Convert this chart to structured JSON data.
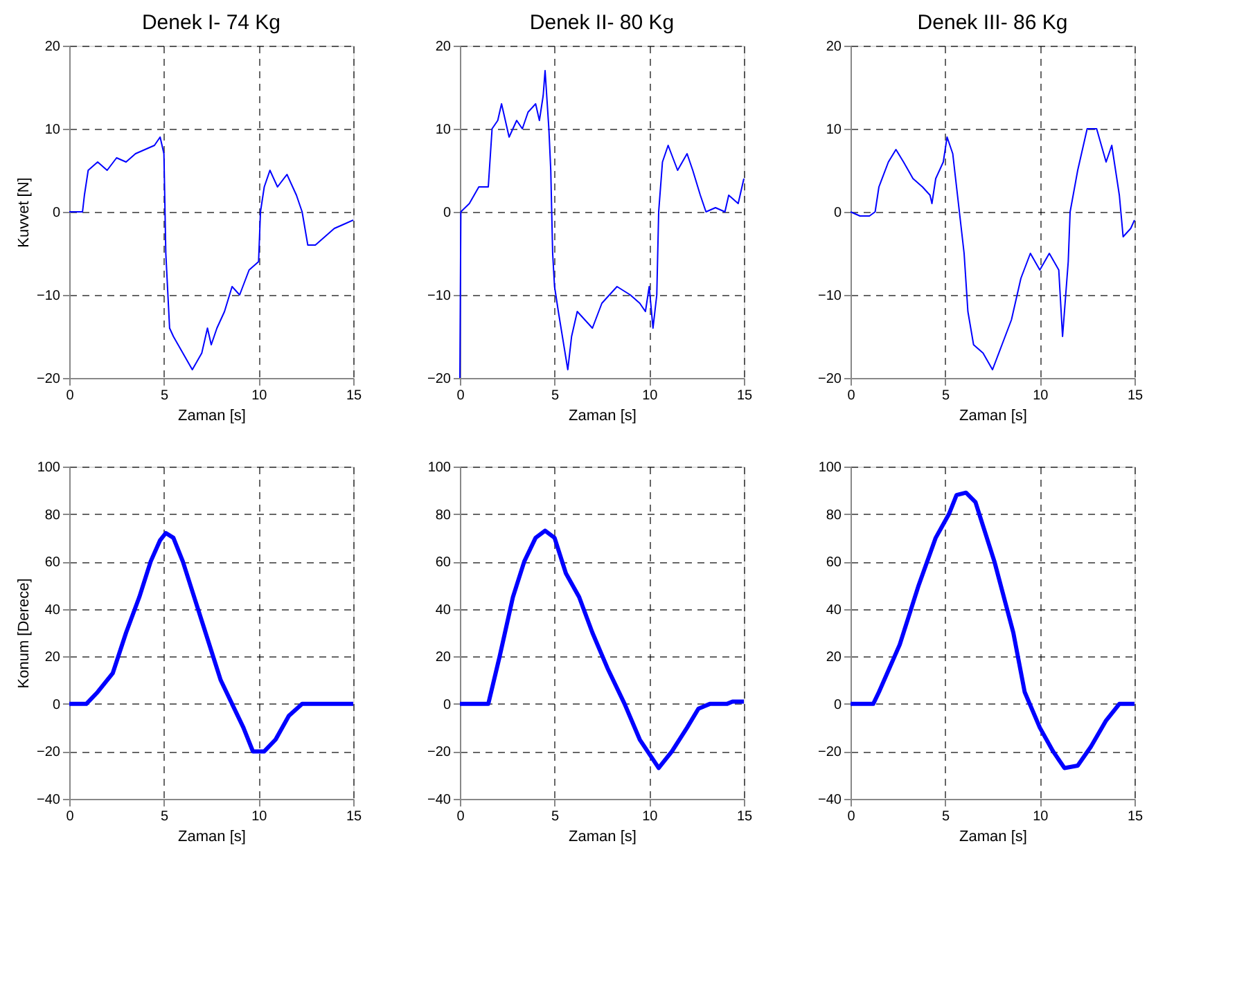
{
  "chart_data": [
    {
      "type": "line",
      "title": "Denek I- 74 Kg",
      "xlabel": "Zaman [s]",
      "ylabel": "Kuvvet [N]",
      "xlim": [
        0,
        15
      ],
      "ylim": [
        -20,
        20
      ],
      "xticks": [
        0,
        5,
        10,
        15
      ],
      "yticks": [
        -20,
        -10,
        0,
        10,
        20
      ],
      "grid": true,
      "line_style": "solid",
      "series": [
        {
          "color": "#0000ff",
          "x": [
            0,
            0.7,
            0.8,
            1.0,
            1.5,
            2.0,
            2.5,
            3.0,
            3.5,
            4.0,
            4.5,
            4.8,
            5.0,
            5.1,
            5.3,
            5.5,
            6.0,
            6.5,
            7.0,
            7.3,
            7.5,
            7.8,
            8.2,
            8.6,
            9.0,
            9.5,
            10.0,
            10.1,
            10.3,
            10.6,
            11.0,
            11.5,
            12.0,
            12.3,
            12.6,
            13.0,
            13.5,
            14.0,
            14.5,
            15.0
          ],
          "values": [
            0,
            0,
            2,
            5,
            6,
            5,
            6.5,
            6,
            7,
            7.5,
            8,
            9,
            7,
            -5,
            -14,
            -15,
            -17,
            -19,
            -17,
            -14,
            -16,
            -14,
            -12,
            -9,
            -10,
            -7,
            -6,
            0,
            3,
            5,
            3,
            4.5,
            2,
            0,
            -4,
            -4,
            -3,
            -2,
            -1.5,
            -1
          ]
        }
      ]
    },
    {
      "type": "line",
      "title": "Denek II- 80 Kg",
      "xlabel": "Zaman [s]",
      "xlim": [
        0,
        15
      ],
      "ylim": [
        -20,
        20
      ],
      "xticks": [
        0,
        5,
        10,
        15
      ],
      "yticks": [
        -20,
        -10,
        0,
        10,
        20
      ],
      "grid": true,
      "line_style": "solid",
      "series": [
        {
          "color": "#0000ff",
          "x": [
            0,
            0.05,
            0.5,
            1.0,
            1.5,
            1.7,
            2.0,
            2.2,
            2.6,
            3.0,
            3.3,
            3.6,
            4.0,
            4.2,
            4.4,
            4.5,
            4.7,
            4.8,
            4.9,
            5.0,
            5.2,
            5.7,
            5.9,
            6.2,
            6.6,
            7.0,
            7.5,
            8.3,
            9.0,
            9.5,
            9.8,
            10.0,
            10.2,
            10.4,
            10.5,
            10.7,
            11.0,
            11.5,
            12.0,
            12.3,
            12.7,
            13.0,
            13.5,
            14.0,
            14.2,
            14.7,
            15.0
          ],
          "values": [
            -20,
            0,
            1,
            3,
            3,
            10,
            11,
            13,
            9,
            11,
            10,
            12,
            13,
            11,
            14,
            17,
            10,
            5,
            -5,
            -9,
            -12,
            -19,
            -15,
            -12,
            -13,
            -14,
            -11,
            -9,
            -10,
            -11,
            -12,
            -9,
            -14,
            -10,
            0,
            6,
            8,
            5,
            7,
            5,
            2,
            0,
            0.5,
            0,
            2,
            1,
            4
          ]
        }
      ]
    },
    {
      "type": "line",
      "title": "Denek III- 86 Kg",
      "xlabel": "Zaman [s]",
      "xlim": [
        0,
        15
      ],
      "ylim": [
        -20,
        20
      ],
      "xticks": [
        0,
        5,
        10,
        15
      ],
      "yticks": [
        -20,
        -10,
        0,
        10,
        20
      ],
      "grid": true,
      "line_style": "solid",
      "series": [
        {
          "color": "#0000ff",
          "x": [
            0,
            0.5,
            1.0,
            1.3,
            1.5,
            2.0,
            2.4,
            2.8,
            3.3,
            3.8,
            4.2,
            4.3,
            4.5,
            4.9,
            5.1,
            5.4,
            5.6,
            5.8,
            6.0,
            6.2,
            6.5,
            7.0,
            7.5,
            8.0,
            8.5,
            9.0,
            9.5,
            10.0,
            10.5,
            11.0,
            11.2,
            11.5,
            11.6,
            12.0,
            12.5,
            13.0,
            13.5,
            13.8,
            14.2,
            14.4,
            14.8,
            15.0
          ],
          "values": [
            0,
            -0.5,
            -0.5,
            0,
            3,
            6,
            7.5,
            6,
            4,
            3,
            2,
            1,
            4,
            6,
            9,
            7,
            3,
            -1,
            -5,
            -12,
            -16,
            -17,
            -19,
            -16,
            -13,
            -8,
            -5,
            -7,
            -5,
            -7,
            -15,
            -6,
            0,
            5,
            10,
            10,
            6,
            8,
            2,
            -3,
            -2,
            -1
          ]
        }
      ]
    },
    {
      "type": "line",
      "xlabel": "Zaman [s]",
      "ylabel": "Konum [Derece]",
      "xlim": [
        0,
        15
      ],
      "ylim": [
        -40,
        100
      ],
      "xticks": [
        0,
        5,
        10,
        15
      ],
      "yticks": [
        -40,
        -20,
        0,
        20,
        40,
        60,
        80,
        100
      ],
      "grid": true,
      "line_style": "solid",
      "series": [
        {
          "color": "#0000ff",
          "x": [
            0,
            0.9,
            1.5,
            2.3,
            3.0,
            3.7,
            4.3,
            4.8,
            5.1,
            5.5,
            6.0,
            6.6,
            7.2,
            8.0,
            8.6,
            9.2,
            9.7,
            10.3,
            10.9,
            11.6,
            12.3,
            15.0
          ],
          "values": [
            0,
            0,
            5,
            13,
            30,
            45,
            60,
            69,
            72,
            70,
            60,
            45,
            30,
            10,
            0,
            -10,
            -20,
            -20,
            -15,
            -5,
            0,
            0
          ]
        }
      ]
    },
    {
      "type": "line",
      "xlabel": "Zaman [s]",
      "xlim": [
        0,
        15
      ],
      "ylim": [
        -40,
        100
      ],
      "xticks": [
        0,
        5,
        10,
        15
      ],
      "yticks": [
        -40,
        -20,
        0,
        20,
        40,
        60,
        80,
        100
      ],
      "grid": true,
      "line_style": "solid",
      "series": [
        {
          "color": "#0000ff",
          "x": [
            0,
            1.5,
            2.1,
            2.8,
            3.4,
            4.0,
            4.5,
            5.0,
            5.6,
            6.3,
            7.0,
            7.8,
            8.7,
            9.5,
            10.5,
            11.2,
            12.0,
            12.6,
            13.2,
            14.1,
            14.4,
            15.0
          ],
          "values": [
            0,
            0,
            20,
            45,
            60,
            70,
            73,
            70,
            55,
            45,
            30,
            15,
            0,
            -15,
            -27,
            -20,
            -10,
            -2,
            0,
            0,
            1,
            1
          ]
        }
      ]
    },
    {
      "type": "line",
      "xlabel": "Zaman [s]",
      "xlim": [
        0,
        15
      ],
      "ylim": [
        -40,
        100
      ],
      "xticks": [
        0,
        5,
        10,
        15
      ],
      "yticks": [
        -40,
        -20,
        0,
        20,
        40,
        60,
        80,
        100
      ],
      "grid": true,
      "line_style": "solid",
      "series": [
        {
          "color": "#0000ff",
          "x": [
            0,
            1.2,
            1.5,
            2.6,
            3.6,
            4.5,
            5.2,
            5.6,
            6.1,
            6.6,
            7.6,
            8.6,
            9.2,
            10.0,
            10.7,
            11.3,
            12.0,
            12.7,
            13.5,
            14.2,
            15.0
          ],
          "values": [
            0,
            0,
            5,
            25,
            50,
            70,
            80,
            88,
            89,
            85,
            60,
            30,
            5,
            -10,
            -20,
            -27,
            -26,
            -18,
            -7,
            0,
            0
          ]
        }
      ]
    }
  ]
}
